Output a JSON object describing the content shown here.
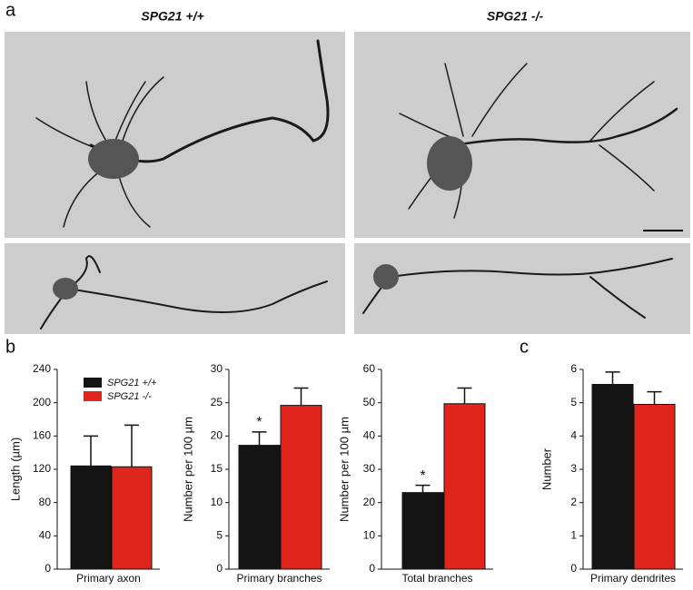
{
  "panel_labels": [
    "a",
    "b",
    "c"
  ],
  "image_titles": [
    "SPG21 +/+",
    "SPG21 -/-"
  ],
  "chart_data": [
    {
      "type": "bar",
      "ylabel": "Length (µm)",
      "xlabel": "Primary axon",
      "ylim": [
        0,
        240
      ],
      "yticks": [
        0,
        40,
        80,
        120,
        160,
        200,
        240
      ],
      "series": [
        {
          "name": "SPG21 +/+",
          "color": "#141414",
          "values": [
            124
          ],
          "errors": [
            36
          ]
        },
        {
          "name": "SPG21 -/-",
          "color": "#e0261c",
          "values": [
            123
          ],
          "errors": [
            50
          ]
        }
      ]
    },
    {
      "type": "bar",
      "ylabel": "Number per 100 µm",
      "xlabel": "Primary branches",
      "annotation": "*",
      "ylim": [
        0,
        30
      ],
      "yticks": [
        0,
        5,
        10,
        15,
        20,
        25,
        30
      ],
      "series": [
        {
          "color": "#141414",
          "values": [
            18.6
          ],
          "errors": [
            2.0
          ]
        },
        {
          "color": "#e0261c",
          "values": [
            24.6
          ],
          "errors": [
            2.6
          ]
        }
      ]
    },
    {
      "type": "bar",
      "ylabel": "Number per 100 µm",
      "xlabel": "Total branches",
      "annotation": "*",
      "ylim": [
        0,
        60
      ],
      "yticks": [
        0,
        10,
        20,
        30,
        40,
        50,
        60
      ],
      "series": [
        {
          "color": "#141414",
          "values": [
            23
          ],
          "errors": [
            2.2
          ]
        },
        {
          "color": "#e0261c",
          "values": [
            49.7
          ],
          "errors": [
            4.7
          ]
        }
      ]
    },
    {
      "type": "bar",
      "ylabel": "Number",
      "xlabel": "Primary dendrites",
      "ylim": [
        0,
        6
      ],
      "yticks": [
        0,
        1,
        2,
        3,
        4,
        5,
        6
      ],
      "series": [
        {
          "color": "#141414",
          "values": [
            5.55
          ],
          "errors": [
            0.37
          ]
        },
        {
          "color": "#e0261c",
          "values": [
            4.95
          ],
          "errors": [
            0.38
          ]
        }
      ]
    }
  ]
}
